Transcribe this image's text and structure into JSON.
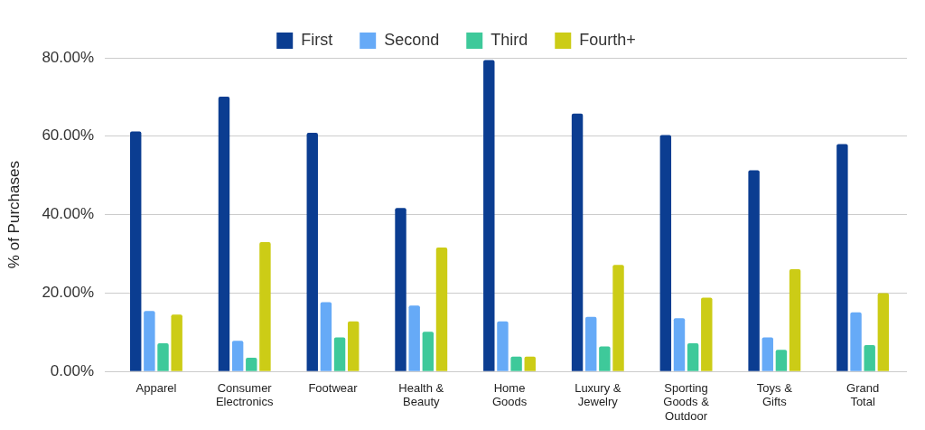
{
  "chart_data": {
    "type": "bar",
    "y_label": "% of Purchases",
    "categories": [
      "Apparel",
      "Consumer Electronics",
      "Footwear",
      "Health & Beauty",
      "Home Goods",
      "Luxury & Jewelry",
      "Sporting Goods & Outdoor",
      "Toys & Gifts",
      "Grand Total"
    ],
    "series": [
      {
        "name": "First",
        "color": "#0b3d91",
        "values": [
          61.2,
          70.1,
          60.9,
          41.7,
          79.4,
          65.8,
          60.3,
          51.3,
          58.0
        ]
      },
      {
        "name": "Second",
        "color": "#66aaf7",
        "values": [
          15.4,
          7.8,
          17.7,
          16.8,
          12.8,
          13.9,
          13.6,
          8.7,
          15.1
        ]
      },
      {
        "name": "Third",
        "color": "#3ec99a",
        "values": [
          7.2,
          3.5,
          8.7,
          10.1,
          3.8,
          6.4,
          7.2,
          5.5,
          6.7
        ]
      },
      {
        "name": "Fourth+",
        "color": "#cccc16",
        "values": [
          14.5,
          33.0,
          12.8,
          31.6,
          3.8,
          27.2,
          18.8,
          26.1,
          20.0
        ]
      }
    ],
    "ylim": [
      0,
      80
    ],
    "yticks": [
      {
        "value": 0,
        "label": "0.00%"
      },
      {
        "value": 20,
        "label": "20.00%"
      },
      {
        "value": 40,
        "label": "40.00%"
      },
      {
        "value": 60,
        "label": "60.00%"
      },
      {
        "value": 80,
        "label": "80.00%"
      }
    ],
    "grid": true,
    "legend": "top"
  }
}
